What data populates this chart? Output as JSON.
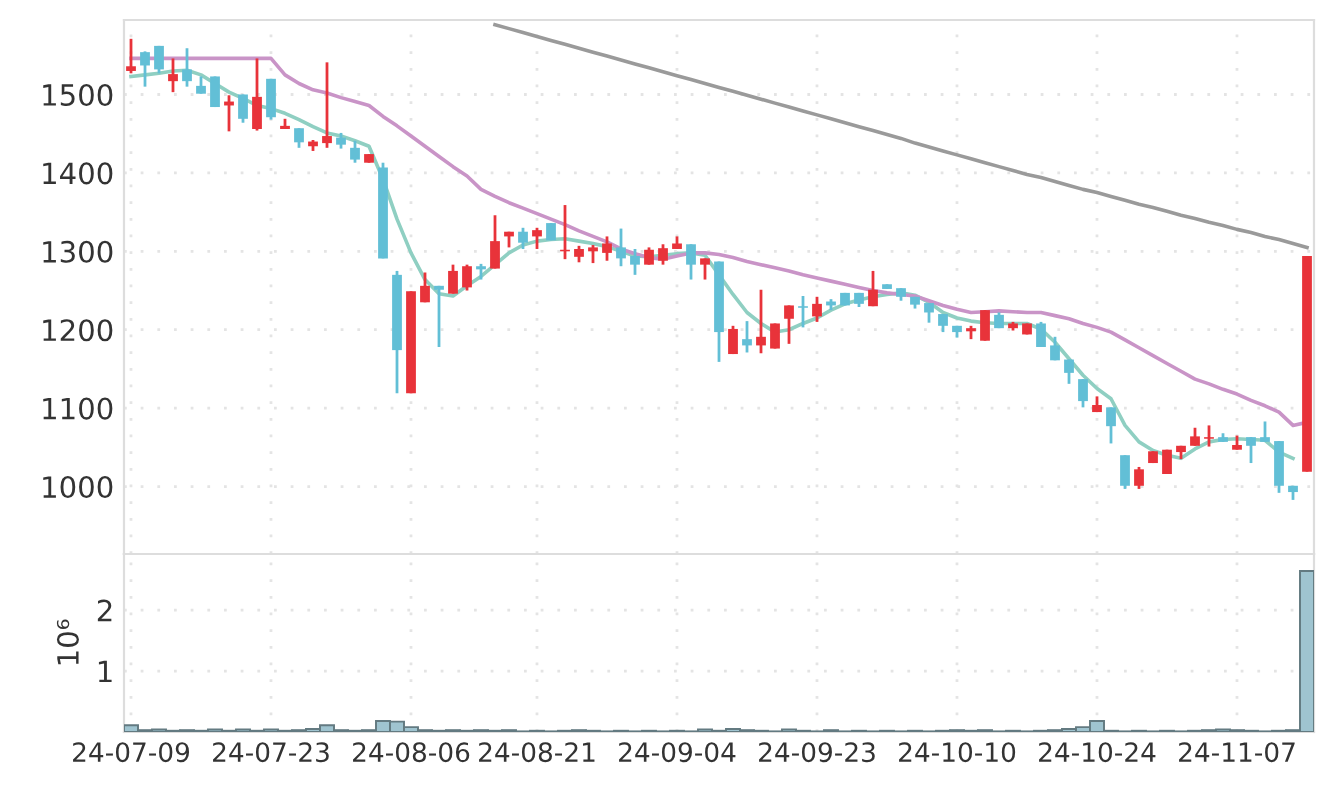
{
  "chart_data": [
    {
      "type": "candlestick",
      "categories": [
        null,
        null,
        null,
        null,
        null,
        null,
        null,
        null,
        null,
        null,
        null,
        null,
        null,
        null,
        null,
        null,
        null,
        null,
        null,
        null,
        null,
        null,
        null,
        null,
        null,
        null,
        null,
        null,
        null,
        null,
        null,
        null,
        null,
        null,
        null,
        null,
        null,
        null,
        null,
        null,
        null,
        null,
        null,
        null,
        null,
        null,
        null,
        null,
        null,
        null,
        null,
        null,
        null,
        null,
        null,
        null,
        null,
        null,
        null,
        null,
        null,
        null,
        null,
        null,
        null,
        null,
        null,
        null,
        null,
        null,
        null,
        null,
        null,
        null,
        null,
        null,
        null,
        null,
        null,
        null,
        null,
        null,
        null,
        null,
        null
      ],
      "ohlc": [
        [
          1530,
          1571,
          1527,
          1536
        ],
        [
          1554,
          1555,
          1510,
          1537
        ],
        [
          1562,
          1562,
          1527,
          1532
        ],
        [
          1517,
          1546,
          1503,
          1526
        ],
        [
          1532,
          1559,
          1510,
          1517
        ],
        [
          1511,
          1523,
          1501,
          1501
        ],
        [
          1523,
          1523,
          1484,
          1484
        ],
        [
          1486,
          1499,
          1453,
          1491
        ],
        [
          1500,
          1500,
          1464,
          1469
        ],
        [
          1456,
          1546,
          1454,
          1497
        ],
        [
          1520,
          1520,
          1468,
          1471
        ],
        [
          1456,
          1469,
          1456,
          1460
        ],
        [
          1457,
          1457,
          1432,
          1439
        ],
        [
          1434,
          1442,
          1428,
          1440
        ],
        [
          1438,
          1541,
          1432,
          1447
        ],
        [
          1445,
          1451,
          1431,
          1436
        ],
        [
          1432,
          1441,
          1413,
          1417
        ],
        [
          1413,
          1424,
          1413,
          1424
        ],
        [
          1407,
          1413,
          1291,
          1291
        ],
        [
          1270,
          1275,
          1119,
          1174
        ],
        [
          1119,
          1249,
          1119,
          1249
        ],
        [
          1235,
          1273,
          1235,
          1256
        ],
        [
          1256,
          1256,
          1178,
          1251
        ],
        [
          1246,
          1283,
          1246,
          1275
        ],
        [
          1254,
          1283,
          1250,
          1281
        ],
        [
          1281,
          1284,
          1264,
          1277
        ],
        [
          1278,
          1346,
          1278,
          1313
        ],
        [
          1319,
          1325,
          1305,
          1325
        ],
        [
          1325,
          1330,
          1303,
          1311
        ],
        [
          1319,
          1330,
          1303,
          1327
        ],
        [
          1336,
          1336,
          1314,
          1314
        ],
        [
          1300,
          1359,
          1290,
          1302
        ],
        [
          1293,
          1307,
          1286,
          1303
        ],
        [
          1300,
          1308,
          1285,
          1305
        ],
        [
          1298,
          1319,
          1288,
          1310
        ],
        [
          1305,
          1329,
          1281,
          1291
        ],
        [
          1294,
          1303,
          1270,
          1283
        ],
        [
          1283,
          1305,
          1283,
          1302
        ],
        [
          1288,
          1309,
          1283,
          1304
        ],
        [
          1303,
          1319,
          1303,
          1310
        ],
        [
          1309,
          1309,
          1264,
          1283
        ],
        [
          1283,
          1291,
          1264,
          1291
        ],
        [
          1287,
          1287,
          1159,
          1197
        ],
        [
          1169,
          1205,
          1169,
          1201
        ],
        [
          1188,
          1211,
          1171,
          1180
        ],
        [
          1180,
          1251,
          1170,
          1191
        ],
        [
          1176,
          1208,
          1176,
          1208
        ],
        [
          1214,
          1231,
          1182,
          1231
        ],
        [
          1230,
          1243,
          1203,
          1228
        ],
        [
          1217,
          1242,
          1210,
          1233
        ],
        [
          1236,
          1239,
          1225,
          1231
        ],
        [
          1247,
          1247,
          1231,
          1231
        ],
        [
          1247,
          1247,
          1229,
          1233
        ],
        [
          1230,
          1275,
          1230,
          1251
        ],
        [
          1258,
          1258,
          1252,
          1252
        ],
        [
          1253,
          1253,
          1237,
          1242
        ],
        [
          1242,
          1242,
          1227,
          1232
        ],
        [
          1234,
          1234,
          1209,
          1222
        ],
        [
          1220,
          1220,
          1197,
          1205
        ],
        [
          1205,
          1205,
          1190,
          1197
        ],
        [
          1198,
          1205,
          1188,
          1202
        ],
        [
          1186,
          1225,
          1186,
          1225
        ],
        [
          1219,
          1222,
          1202,
          1202
        ],
        [
          1202,
          1210,
          1199,
          1208
        ],
        [
          1194,
          1208,
          1194,
          1208
        ],
        [
          1208,
          1210,
          1178,
          1178
        ],
        [
          1180,
          1191,
          1161,
          1161
        ],
        [
          1162,
          1162,
          1131,
          1145
        ],
        [
          1137,
          1137,
          1101,
          1109
        ],
        [
          1095,
          1115,
          1095,
          1104
        ],
        [
          1101,
          1101,
          1055,
          1077
        ],
        [
          1040,
          1040,
          997,
          1001
        ],
        [
          1001,
          1025,
          997,
          1022
        ],
        [
          1030,
          1045,
          1030,
          1045
        ],
        [
          1016,
          1047,
          1016,
          1047
        ],
        [
          1044,
          1052,
          1035,
          1052
        ],
        [
          1052,
          1075,
          1052,
          1064
        ],
        [
          1061,
          1078,
          1051,
          1063
        ],
        [
          1063,
          1068,
          1057,
          1057
        ],
        [
          1047,
          1065,
          1047,
          1053
        ],
        [
          1063,
          1063,
          1030,
          1052
        ],
        [
          1063,
          1083,
          1057,
          1057
        ],
        [
          1058,
          1058,
          992,
          1001
        ],
        [
          1001,
          1001,
          983,
          993
        ],
        [
          1019,
          1294,
          1019,
          1294
        ]
      ],
      "colors": [
        "#e8333a",
        "#62bfd6",
        "#62bfd6",
        "#e8333a",
        "#62bfd6",
        "#62bfd6",
        "#62bfd6",
        "#e8333a",
        "#62bfd6",
        "#e8333a",
        "#62bfd6",
        "#e8333a",
        "#62bfd6",
        "#e8333a",
        "#e8333a",
        "#62bfd6",
        "#62bfd6",
        "#e8333a",
        "#62bfd6",
        "#62bfd6",
        "#e8333a",
        "#e8333a",
        "#62bfd6",
        "#e8333a",
        "#e8333a",
        "#62bfd6",
        "#e8333a",
        "#e8333a",
        "#62bfd6",
        "#e8333a",
        "#62bfd6",
        "#e8333a",
        "#e8333a",
        "#e8333a",
        "#e8333a",
        "#62bfd6",
        "#62bfd6",
        "#e8333a",
        "#e8333a",
        "#e8333a",
        "#62bfd6",
        "#e8333a",
        "#62bfd6",
        "#e8333a",
        "#62bfd6",
        "#e8333a",
        "#e8333a",
        "#e8333a",
        "#62bfd6",
        "#e8333a",
        "#62bfd6",
        "#62bfd6",
        "#62bfd6",
        "#e8333a",
        "#62bfd6",
        "#62bfd6",
        "#62bfd6",
        "#62bfd6",
        "#62bfd6",
        "#62bfd6",
        "#e8333a",
        "#e8333a",
        "#62bfd6",
        "#e8333a",
        "#e8333a",
        "#62bfd6",
        "#62bfd6",
        "#62bfd6",
        "#62bfd6",
        "#e8333a",
        "#62bfd6",
        "#62bfd6",
        "#e8333a",
        "#e8333a",
        "#e8333a",
        "#e8333a",
        "#e8333a",
        "#e8333a",
        "#62bfd6",
        "#e8333a",
        "#62bfd6",
        "#62bfd6",
        "#62bfd6",
        "#62bfd6",
        "#e8333a"
      ],
      "series": [
        {
          "type": "line",
          "color": "#8fcfc2",
          "values": [
            1523,
            1525,
            1527,
            1530,
            1531,
            1525,
            1514,
            1503,
            1495,
            1486,
            1482,
            1476,
            1468,
            1459,
            1451,
            1447,
            1441,
            1434,
            1392,
            1341,
            1298,
            1264,
            1246,
            1243,
            1256,
            1268,
            1283,
            1298,
            1308,
            1313,
            1315,
            1316,
            1313,
            1310,
            1306,
            1300,
            1294,
            1293,
            1295,
            1297,
            1298,
            1295,
            1270,
            1245,
            1222,
            1208,
            1197,
            1200,
            1208,
            1215,
            1225,
            1233,
            1238,
            1242,
            1245,
            1247,
            1244,
            1235,
            1222,
            1215,
            1211,
            1209,
            1208,
            1208,
            1208,
            1201,
            1184,
            1163,
            1142,
            1125,
            1112,
            1078,
            1057,
            1046,
            1040,
            1036,
            1048,
            1057,
            1060,
            1061,
            1060,
            1059,
            1044,
            1036,
            null
          ]
        },
        {
          "type": "line",
          "color": "#c994c7",
          "values": [
            1546,
            1546,
            1546,
            1546,
            1546,
            1546,
            1546,
            1546,
            1546,
            1546,
            1546,
            1525,
            1514,
            1506,
            1502,
            1496,
            1491,
            1486,
            1472,
            1460,
            1447,
            1434,
            1421,
            1408,
            1396,
            1379,
            1370,
            1362,
            1355,
            1348,
            1341,
            1334,
            1326,
            1319,
            1312,
            1303,
            1297,
            1292,
            1290,
            1294,
            1298,
            1298,
            1296,
            1292,
            1287,
            1283,
            1279,
            1275,
            1270,
            1266,
            1262,
            1258,
            1254,
            1250,
            1247,
            1245,
            1243,
            1237,
            1231,
            1226,
            1222,
            1223,
            1224,
            1223,
            1222,
            1222,
            1218,
            1214,
            1208,
            1203,
            1197,
            1187,
            1177,
            1167,
            1157,
            1147,
            1137,
            1131,
            1124,
            1118,
            1110,
            1103,
            1095,
            1078,
            1082
          ]
        },
        {
          "type": "line",
          "color": "#9a9a9a",
          "values": [
            null,
            null,
            null,
            null,
            null,
            null,
            null,
            null,
            null,
            null,
            null,
            null,
            null,
            null,
            null,
            null,
            null,
            null,
            null,
            null,
            null,
            null,
            null,
            null,
            null,
            null,
            1589,
            1584,
            1579,
            1574,
            1569,
            1564,
            1559,
            1554,
            1549,
            1544,
            1539,
            1534,
            1529,
            1524,
            1519,
            1514,
            1509,
            1504,
            1499,
            1494,
            1489,
            1484,
            1479,
            1474,
            1469,
            1464,
            1459,
            1454,
            1449,
            1444,
            1438,
            1433,
            1428,
            1423,
            1418,
            1413,
            1408,
            1403,
            1398,
            1394,
            1389,
            1384,
            1379,
            1375,
            1370,
            1365,
            1360,
            1356,
            1351,
            1346,
            1342,
            1337,
            1333,
            1328,
            1324,
            1319,
            1315,
            1310,
            1305
          ]
        }
      ],
      "ylim": [
        914,
        1595
      ],
      "yticks": [
        1000,
        1100,
        1200,
        1300,
        1400,
        1500
      ],
      "grid": true,
      "tick_labels": "y"
    },
    {
      "type": "bar",
      "ylabel": "10⁶",
      "categories": [
        "24-07-09",
        null,
        null,
        null,
        null,
        null,
        null,
        null,
        null,
        null,
        "24-07-23",
        null,
        null,
        null,
        null,
        null,
        null,
        null,
        null,
        null,
        "24-08-06",
        null,
        null,
        null,
        null,
        null,
        null,
        null,
        null,
        "24-08-21",
        null,
        null,
        null,
        null,
        null,
        null,
        null,
        null,
        null,
        "24-09-04",
        null,
        null,
        null,
        null,
        null,
        null,
        null,
        null,
        null,
        "24-09-23",
        null,
        null,
        null,
        null,
        null,
        null,
        null,
        null,
        null,
        "24-10-10",
        null,
        null,
        null,
        null,
        null,
        null,
        null,
        null,
        null,
        "24-10-24",
        null,
        null,
        null,
        null,
        null,
        null,
        null,
        null,
        null,
        "24-11-07",
        null,
        null,
        null,
        null,
        null
      ],
      "values": [
        0.11,
        0.03,
        0.04,
        0.02,
        0.03,
        0.02,
        0.04,
        0.02,
        0.04,
        0.02,
        0.04,
        0.02,
        0.03,
        0.05,
        0.11,
        0.03,
        0.02,
        0.03,
        0.18,
        0.17,
        0.08,
        0.03,
        0.02,
        0.03,
        0.02,
        0.03,
        0.02,
        0.03,
        0.01,
        0.02,
        0.01,
        0.02,
        0.03,
        0.02,
        0.01,
        0.02,
        0.01,
        0.02,
        0.01,
        0.02,
        0.01,
        0.04,
        0.02,
        0.05,
        0.03,
        0.02,
        0.01,
        0.04,
        0.02,
        0.01,
        0.03,
        0.01,
        0.02,
        0.01,
        0.02,
        0.01,
        0.02,
        0.01,
        0.02,
        0.03,
        0.02,
        0.03,
        0.01,
        0.02,
        0.01,
        0.02,
        0.03,
        0.05,
        0.08,
        0.18,
        0.02,
        0.01,
        0.02,
        0.01,
        0.02,
        0.01,
        0.02,
        0.03,
        0.04,
        0.03,
        0.02,
        0.01,
        0.02,
        0.03,
        2.64
      ],
      "color": "#9fc4d0",
      "ylim": [
        0,
        2.92
      ],
      "yticks": [
        1,
        2
      ],
      "grid": true
    }
  ]
}
